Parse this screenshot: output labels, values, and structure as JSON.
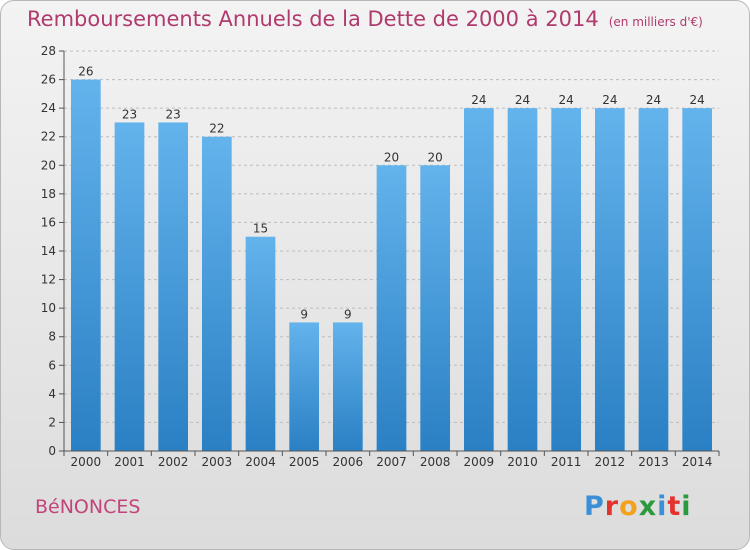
{
  "title": "Remboursements Annuels de la Dette de 2000 à 2014",
  "subtitle": "(en milliers d'€)",
  "commune": "BéNONCES",
  "logo": {
    "letters": [
      {
        "ch": "P",
        "color": "#3a8fd6"
      },
      {
        "ch": "r",
        "color": "#e4332f"
      },
      {
        "ch": "o",
        "color": "#f3a21c"
      },
      {
        "ch": "x",
        "color": "#2b9a3e"
      },
      {
        "ch": "i",
        "color": "#3a8fd6"
      },
      {
        "ch": "t",
        "color": "#e4332f"
      },
      {
        "ch": "i",
        "color": "#2b9a3e"
      }
    ]
  },
  "colors": {
    "bar_light": "#63b3ec",
    "bar_dark": "#2a80c4",
    "grid": "#bdbdbd",
    "axis": "#555555",
    "title": "#b03a6e"
  },
  "chart_data": {
    "type": "bar",
    "title": "Remboursements Annuels de la Dette de 2000 à 2014",
    "xlabel": "",
    "ylabel": "",
    "ylim": [
      0,
      28
    ],
    "yticks": [
      0,
      2,
      4,
      6,
      8,
      10,
      12,
      14,
      16,
      18,
      20,
      22,
      24,
      26,
      28
    ],
    "grid": true,
    "categories": [
      "2000",
      "2001",
      "2002",
      "2003",
      "2004",
      "2005",
      "2006",
      "2007",
      "2008",
      "2009",
      "2010",
      "2011",
      "2012",
      "2013",
      "2014"
    ],
    "values": [
      26,
      23,
      23,
      22,
      15,
      9,
      9,
      20,
      20,
      24,
      24,
      24,
      24,
      24,
      24
    ]
  }
}
